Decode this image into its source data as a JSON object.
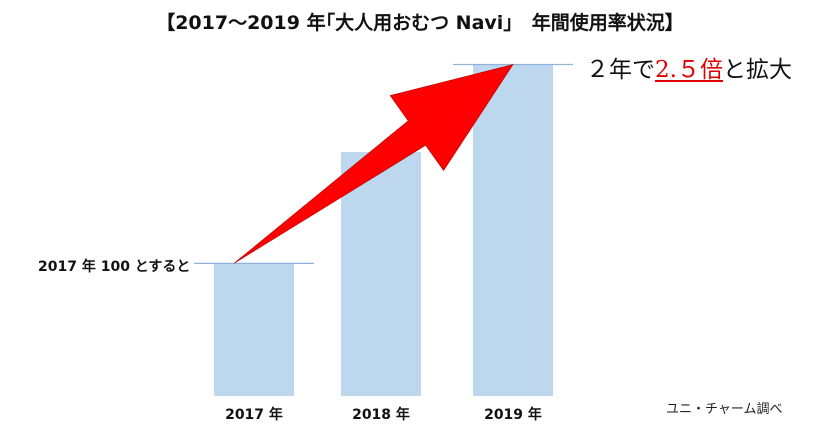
{
  "title": "【2017～2019 年｢大人用おむつ Navi｣　年間使用率状況】",
  "growth_annotation": {
    "prefix": "２年で",
    "multiplier": "2.５倍",
    "suffix": "と拡大"
  },
  "baseline_note": "2017 年 100 とすると",
  "source": "ユニ・チャーム調べ",
  "colors": {
    "bar": "#bdd7ee",
    "arrow": "#ff0000",
    "multiplier_text": "#e00000"
  },
  "chart_data": {
    "type": "bar",
    "title": "【2017～2019 年｢大人用おむつ Navi｣　年間使用率状況】",
    "categories": [
      "2017 年",
      "2018 年",
      "2019 年"
    ],
    "values": [
      100,
      184,
      250
    ],
    "ylim": [
      0,
      270
    ],
    "grid": false,
    "legend": "none",
    "annotations": [
      "2017 年 100 とすると",
      "２年で2.５倍と拡大"
    ]
  }
}
